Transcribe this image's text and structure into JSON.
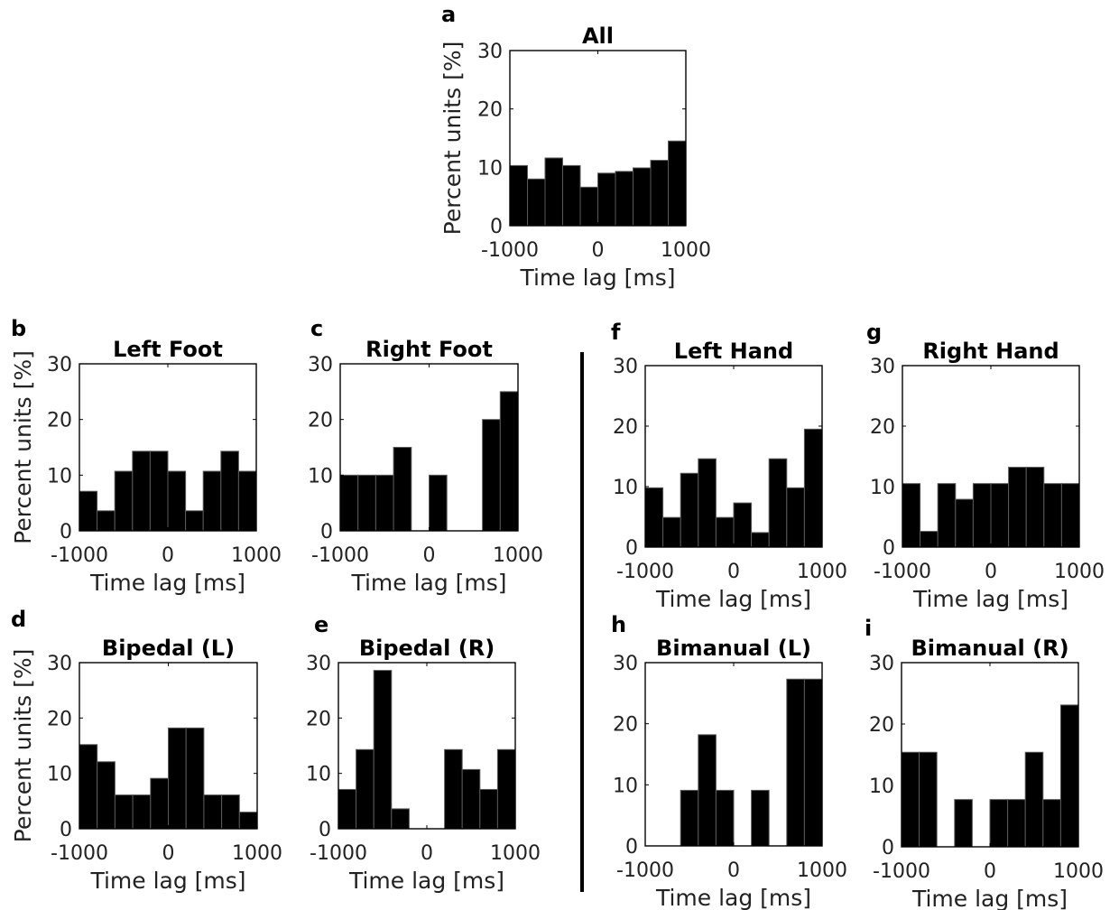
{
  "chart_data": [
    {
      "panel": "a",
      "type": "bar",
      "title": "All",
      "xlabel": "Time lag [ms]",
      "ylabel": "Percent units [%]",
      "xlim": [
        -1000,
        1000
      ],
      "ylim": [
        0,
        30
      ],
      "xticks": [
        -1000,
        0,
        1000
      ],
      "yticks": [
        0,
        10,
        20,
        30
      ],
      "bin_width": 200,
      "bin_edges_start": -1000,
      "values": [
        10.3,
        8.0,
        11.6,
        10.3,
        6.6,
        9.0,
        9.3,
        9.9,
        11.2,
        14.5
      ]
    },
    {
      "panel": "b",
      "type": "bar",
      "title": "Left Foot",
      "xlabel": "Time lag [ms]",
      "ylabel": "Percent units [%]",
      "xlim": [
        -1000,
        1000
      ],
      "ylim": [
        0,
        30
      ],
      "xticks": [
        -1000,
        0,
        1000
      ],
      "yticks": [
        0,
        10,
        20,
        30
      ],
      "bin_width": 200,
      "bin_edges_start": -1000,
      "values": [
        7.1,
        3.6,
        10.7,
        14.3,
        14.3,
        10.7,
        3.6,
        10.7,
        14.3,
        10.7
      ]
    },
    {
      "panel": "c",
      "type": "bar",
      "title": "Right Foot",
      "xlabel": "Time lag [ms]",
      "ylabel": "",
      "xlim": [
        -1000,
        1000
      ],
      "ylim": [
        0,
        30
      ],
      "xticks": [
        -1000,
        0,
        1000
      ],
      "yticks": [
        0,
        10,
        20,
        30
      ],
      "bin_width": 200,
      "bin_edges_start": -1000,
      "values": [
        10,
        10,
        10,
        15,
        0,
        10,
        0,
        0,
        20,
        25
      ]
    },
    {
      "panel": "d",
      "type": "bar",
      "title": "Bipedal (L)",
      "xlabel": "Time lag [ms]",
      "ylabel": "Percent units [%]",
      "xlim": [
        -1000,
        1000
      ],
      "ylim": [
        0,
        30
      ],
      "xticks": [
        -1000,
        0,
        1000
      ],
      "yticks": [
        0,
        10,
        20,
        30
      ],
      "bin_width": 200,
      "bin_edges_start": -1000,
      "values": [
        15.2,
        12.1,
        6.1,
        6.1,
        9.1,
        18.2,
        18.2,
        6.1,
        6.1,
        3.0
      ]
    },
    {
      "panel": "e",
      "type": "bar",
      "title": "Bipedal (R)",
      "xlabel": "Time lag [ms]",
      "ylabel": "",
      "xlim": [
        -1000,
        1000
      ],
      "ylim": [
        0,
        30
      ],
      "xticks": [
        -1000,
        0,
        1000
      ],
      "yticks": [
        0,
        10,
        20,
        30
      ],
      "bin_width": 200,
      "bin_edges_start": -1000,
      "values": [
        7.1,
        14.3,
        28.6,
        3.6,
        0,
        0,
        14.3,
        10.7,
        7.1,
        14.3
      ]
    },
    {
      "panel": "f",
      "type": "bar",
      "title": "Left Hand",
      "xlabel": "Time lag [ms]",
      "ylabel": "",
      "xlim": [
        -1000,
        1000
      ],
      "ylim": [
        0,
        30
      ],
      "xticks": [
        -1000,
        0,
        1000
      ],
      "yticks": [
        0,
        10,
        20,
        30
      ],
      "bin_width": 200,
      "bin_edges_start": -1000,
      "values": [
        9.8,
        4.9,
        12.2,
        14.6,
        4.9,
        7.3,
        2.4,
        14.6,
        9.8,
        19.5
      ]
    },
    {
      "panel": "g",
      "type": "bar",
      "title": "Right Hand",
      "xlabel": "Time lag [ms]",
      "ylabel": "",
      "xlim": [
        -1000,
        1000
      ],
      "ylim": [
        0,
        30
      ],
      "xticks": [
        -1000,
        0,
        1000
      ],
      "yticks": [
        0,
        10,
        20,
        30
      ],
      "bin_width": 200,
      "bin_edges_start": -1000,
      "values": [
        10.5,
        2.6,
        10.5,
        7.9,
        10.5,
        10.5,
        13.2,
        13.2,
        10.5,
        10.5
      ]
    },
    {
      "panel": "h",
      "type": "bar",
      "title": "Bimanual (L)",
      "xlabel": "Time lag [ms]",
      "ylabel": "",
      "xlim": [
        -1000,
        1000
      ],
      "ylim": [
        0,
        30
      ],
      "xticks": [
        -1000,
        0,
        1000
      ],
      "yticks": [
        0,
        10,
        20,
        30
      ],
      "bin_width": 200,
      "bin_edges_start": -1000,
      "values": [
        0,
        0,
        9.1,
        18.2,
        9.1,
        0,
        9.1,
        0,
        27.3,
        27.3
      ]
    },
    {
      "panel": "i",
      "type": "bar",
      "title": "Bimanual (R)",
      "xlabel": "Time lag [ms]",
      "ylabel": "",
      "xlim": [
        -1000,
        1000
      ],
      "ylim": [
        0,
        30
      ],
      "xticks": [
        -1000,
        0,
        1000
      ],
      "yticks": [
        0,
        10,
        20,
        30
      ],
      "bin_width": 200,
      "bin_edges_start": -1000,
      "values": [
        15.4,
        15.4,
        0,
        7.7,
        0,
        7.7,
        7.7,
        15.4,
        7.7,
        23.1
      ]
    }
  ],
  "colors": {
    "bar_fill": "#000000",
    "bar_edge": "#5a5a5a",
    "axis": "#000000",
    "text": "#222222"
  }
}
